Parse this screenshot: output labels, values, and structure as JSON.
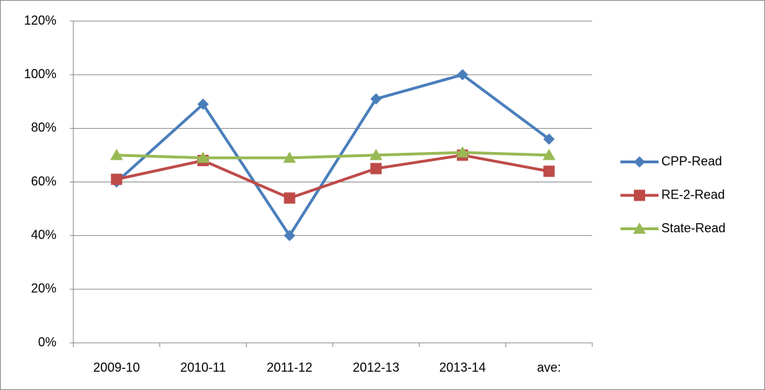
{
  "chart_data": {
    "type": "line",
    "categories": [
      "2009-10",
      "2010-11",
      "2011-12",
      "2012-13",
      "2013-14",
      "ave:"
    ],
    "series": [
      {
        "name": "CPP-Read",
        "color": "#4a7ebb",
        "marker": "diamond",
        "values": [
          60,
          89,
          40,
          91,
          100,
          76
        ]
      },
      {
        "name": "RE-2-Read",
        "color": "#be4b48",
        "marker": "square",
        "values": [
          61,
          68,
          54,
          65,
          70,
          64
        ]
      },
      {
        "name": "State-Read",
        "color": "#98b954",
        "marker": "triangle",
        "values": [
          70,
          69,
          69,
          70,
          71,
          70
        ]
      }
    ],
    "ylim": [
      0,
      120
    ],
    "yticks": [
      {
        "value": 0,
        "label": "0%"
      },
      {
        "value": 20,
        "label": "20%"
      },
      {
        "value": 40,
        "label": "40%"
      },
      {
        "value": 60,
        "label": "60%"
      },
      {
        "value": 80,
        "label": "80%"
      },
      {
        "value": 100,
        "label": "100%"
      },
      {
        "value": 120,
        "label": "120%"
      }
    ],
    "grid": true,
    "legend": "right"
  }
}
